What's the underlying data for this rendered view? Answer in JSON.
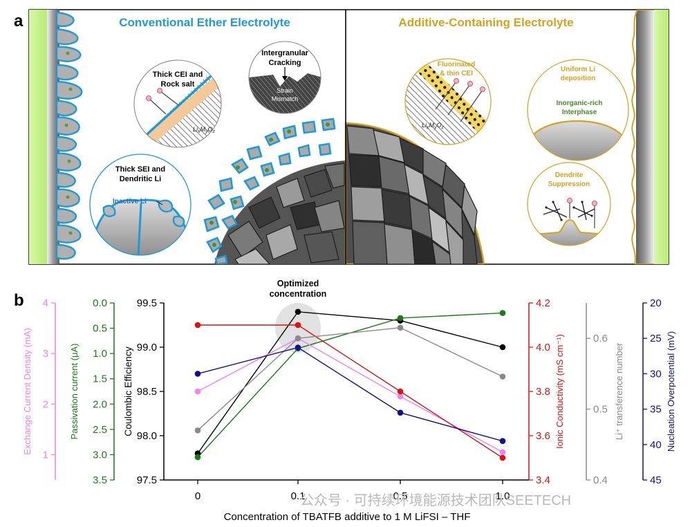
{
  "panel_a": {
    "label": "a",
    "left_title": "Conventional Ether Electrolyte",
    "right_title": "Additive-Containing Electrolyte",
    "left_callouts": {
      "cei_line1": "Thick CEI and",
      "cei_line2": "Rock salt",
      "lmo_prefix": "Li",
      "lmo_mid1": "M",
      "lmo_mid2": "O",
      "lmo_sub_x": "x",
      "lmo_sub_y": "y",
      "lmo_sub_z": "z",
      "crack_line1": "Intergranular",
      "crack_line2": "Cracking",
      "strain_line1": "Strain",
      "strain_line2": "Mismatch",
      "sei_line1": "Thick SEI and",
      "sei_line2": "Dendritic Li",
      "inactive": "Inactive Li"
    },
    "right_callouts": {
      "fcei_line1": "Fluorinated",
      "fcei_line2": "& thin CEI",
      "uniform_line1": "Uniform Li",
      "uniform_line2": "deposition",
      "inorg_line1": "Inorganic-rich",
      "inorg_line2": "Interphase",
      "dendrite_line1": "Dendrite",
      "dendrite_line2": "Suppression"
    }
  },
  "panel_b": {
    "label": "b",
    "annotation_line1": "Optimized",
    "annotation_line2": "concentration",
    "xlabel": "Concentration of TBATFB additive to 1 M LiFSI – THF",
    "watermark": "公众号 · 可持续环境能源技术团队SEETECH"
  },
  "colors": {
    "ce": "#000000",
    "passivation": "#1a7a1a",
    "exchange": "#ee82ee",
    "conductivity": "#dd1111",
    "transference": "#8a8a8a",
    "nucleation": "#10108a",
    "left_accent": "#1e9ad6",
    "right_accent": "#d4a21c"
  },
  "chart_data": {
    "type": "line",
    "title": "",
    "xlabel": "Concentration of TBATFB additive to 1 M LiFSI – THF",
    "categories": [
      "0",
      "0.1",
      "0.5",
      "1.0"
    ],
    "axes": [
      {
        "id": "ce",
        "label": "Coulombic Efficiency",
        "side": "left",
        "range": [
          97.5,
          99.5
        ],
        "ticks": [
          97.5,
          98.0,
          98.5,
          99.0,
          99.5
        ],
        "tick_labels": [
          "97.5",
          "98.0",
          "98.5",
          "99.0",
          "99.5"
        ],
        "reversed": false
      },
      {
        "id": "pass",
        "label": "Passivation current (μA)",
        "side": "left",
        "range": [
          0,
          3.5
        ],
        "ticks": [
          0,
          0.5,
          1,
          1.5,
          2,
          2.5,
          3,
          3.5
        ],
        "tick_labels": [
          "0.0",
          "0.5",
          "1.0",
          "1.5",
          "2.0",
          "2.5",
          "3.0",
          "3.5"
        ],
        "reversed": true
      },
      {
        "id": "exch",
        "label": "Exchange Current Density (mA)",
        "side": "left",
        "range": [
          0.5,
          4.0
        ],
        "ticks": [
          1,
          2,
          3,
          4
        ],
        "tick_labels": [
          "1",
          "2",
          "3",
          "4"
        ],
        "reversed": false
      },
      {
        "id": "cond",
        "label": "Ionic Conductivity (mS cm⁻¹)",
        "side": "right",
        "range": [
          3.4,
          4.2
        ],
        "ticks": [
          3.4,
          3.6,
          3.8,
          4.0,
          4.2
        ],
        "tick_labels": [
          "3.4",
          "3.6",
          "3.8",
          "4.0",
          "4.2"
        ],
        "reversed": false
      },
      {
        "id": "trans",
        "label": "Li⁺ transference number",
        "side": "right",
        "range": [
          0.4,
          0.65
        ],
        "ticks": [
          0.4,
          0.5,
          0.6
        ],
        "tick_labels": [
          "0.4",
          "0.5",
          "0.6"
        ],
        "reversed": false
      },
      {
        "id": "nucl",
        "label": "Nucleation Overpotential (mV)",
        "side": "right",
        "range": [
          20,
          45
        ],
        "ticks": [
          20,
          25,
          30,
          35,
          40,
          45
        ],
        "tick_labels": [
          "20",
          "25",
          "30",
          "35",
          "40",
          "45"
        ],
        "reversed": true
      }
    ],
    "series": [
      {
        "name": "Coulombic Efficiency",
        "axis": "ce",
        "color": "#000000",
        "values": [
          97.8,
          99.4,
          99.3,
          99.0
        ]
      },
      {
        "name": "Passivation current",
        "axis": "pass",
        "color": "#1a7a1a",
        "values": [
          3.05,
          0.9,
          0.3,
          0.2
        ]
      },
      {
        "name": "Exchange Current Density",
        "axis": "exch",
        "color": "#ee82ee",
        "values": [
          2.25,
          3.3,
          2.15,
          1.05
        ]
      },
      {
        "name": "Ionic Conductivity",
        "axis": "cond",
        "color": "#dd1111",
        "values": [
          4.1,
          4.1,
          3.8,
          3.5
        ]
      },
      {
        "name": "Li+ transference number",
        "axis": "trans",
        "color": "#8a8a8a",
        "values": [
          0.47,
          0.6,
          0.615,
          0.546
        ]
      },
      {
        "name": "Nucleation Overpotential",
        "axis": "nucl",
        "color": "#10108a",
        "values": [
          30.0,
          26.3,
          35.5,
          39.5
        ]
      }
    ]
  }
}
